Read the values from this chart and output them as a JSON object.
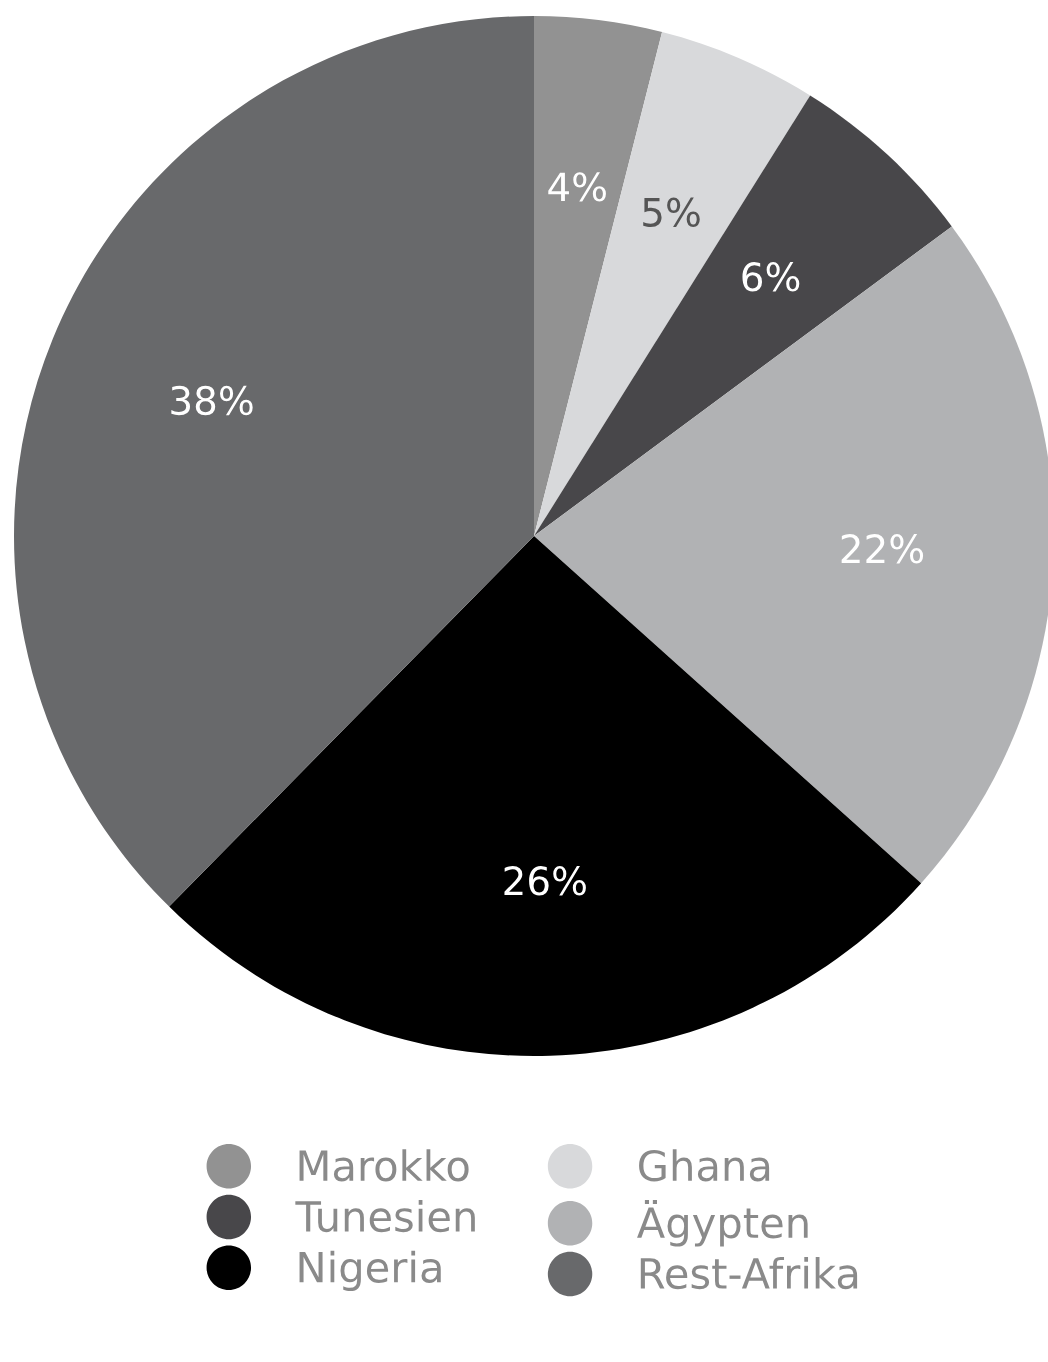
{
  "chart_data": {
    "type": "pie",
    "categories": [
      "Marokko",
      "Ghana",
      "Tunesien",
      "Ägypten",
      "Nigeria",
      "Rest-Afrika"
    ],
    "values": [
      4,
      5,
      6,
      22,
      26,
      38
    ],
    "colors": [
      "#929292",
      "#d8d9db",
      "#48474a",
      "#b1b2b4",
      "#000000",
      "#68696b"
    ],
    "value_labels": [
      "4%",
      "5%",
      "6%",
      "22%",
      "26%",
      "38%"
    ],
    "legend": "bottom"
  }
}
